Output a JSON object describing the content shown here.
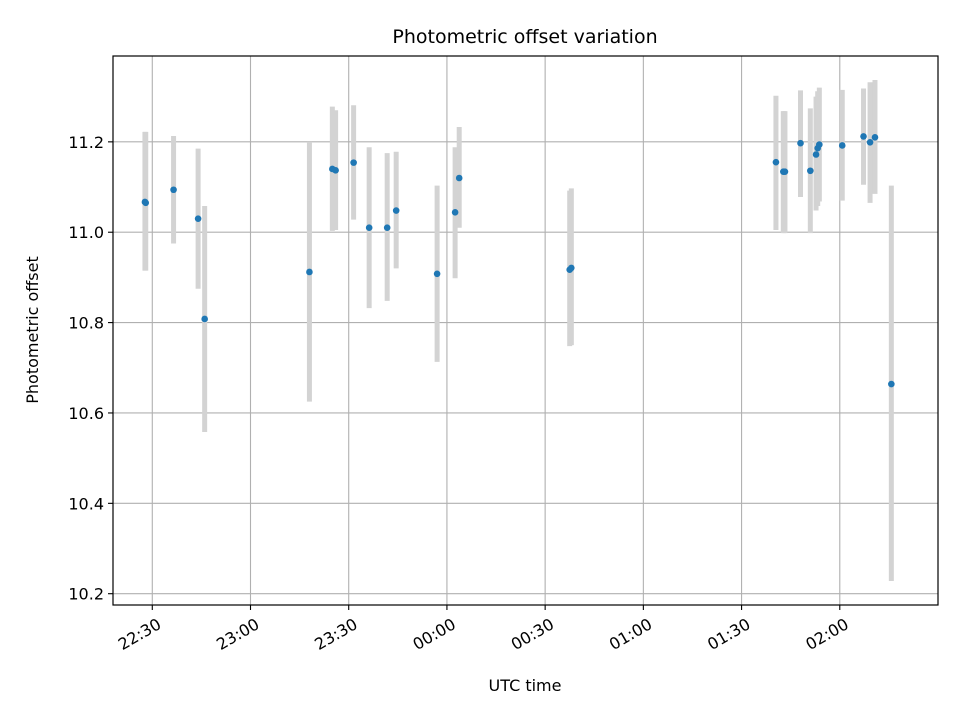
{
  "chart_data": {
    "type": "scatter",
    "title": "Photometric offset variation",
    "xlabel": "UTC time",
    "ylabel": "Photometric offset",
    "grid": true,
    "x_axis": {
      "kind": "time",
      "range": [
        "22:18:00",
        "02:30:00"
      ],
      "ticks": [
        "22:30",
        "23:00",
        "23:30",
        "00:00",
        "00:30",
        "01:00",
        "01:30",
        "02:00"
      ]
    },
    "y_axis": {
      "range": [
        10.175,
        11.39
      ],
      "ticks": [
        "10.2",
        "10.4",
        "10.6",
        "10.8",
        "11.0",
        "11.2"
      ]
    },
    "colors": {
      "points": "#1f77b4",
      "errorbars": "#d3d3d3",
      "grid": "#b0b0b0"
    },
    "series": [
      {
        "points": [
          {
            "t": "22:27:45",
            "y": 11.067,
            "ylow": 10.915,
            "yhigh": 11.222
          },
          {
            "t": "22:28:00",
            "y": 11.065,
            "ylow": 10.915,
            "yhigh": 11.222
          },
          {
            "t": "22:36:30",
            "y": 11.094,
            "ylow": 10.975,
            "yhigh": 11.213
          },
          {
            "t": "22:44:00",
            "y": 11.03,
            "ylow": 10.875,
            "yhigh": 11.185
          },
          {
            "t": "22:46:00",
            "y": 10.808,
            "ylow": 10.558,
            "yhigh": 11.058
          },
          {
            "t": "23:18:00",
            "y": 10.912,
            "ylow": 10.625,
            "yhigh": 11.2
          },
          {
            "t": "23:25:00",
            "y": 11.14,
            "ylow": 11.003,
            "yhigh": 11.278
          },
          {
            "t": "23:26:00",
            "y": 11.137,
            "ylow": 11.005,
            "yhigh": 11.27
          },
          {
            "t": "23:31:30",
            "y": 11.154,
            "ylow": 11.028,
            "yhigh": 11.281
          },
          {
            "t": "23:36:15",
            "y": 11.01,
            "ylow": 10.832,
            "yhigh": 11.188
          },
          {
            "t": "23:41:45",
            "y": 11.01,
            "ylow": 10.848,
            "yhigh": 11.175
          },
          {
            "t": "23:44:30",
            "y": 11.048,
            "ylow": 10.92,
            "yhigh": 11.178
          },
          {
            "t": "23:57:00",
            "y": 10.908,
            "ylow": 10.713,
            "yhigh": 11.103
          },
          {
            "t": "00:02:30",
            "y": 11.044,
            "ylow": 10.898,
            "yhigh": 11.188
          },
          {
            "t": "00:03:45",
            "y": 11.12,
            "ylow": 11.01,
            "yhigh": 11.233
          },
          {
            "t": "00:37:30",
            "y": 10.917,
            "ylow": 10.748,
            "yhigh": 11.092
          },
          {
            "t": "00:38:00",
            "y": 10.921,
            "ylow": 10.75,
            "yhigh": 11.097
          },
          {
            "t": "01:40:30",
            "y": 11.155,
            "ylow": 11.005,
            "yhigh": 11.302
          },
          {
            "t": "01:42:45",
            "y": 11.134,
            "ylow": 10.998,
            "yhigh": 11.268
          },
          {
            "t": "01:43:15",
            "y": 11.134,
            "ylow": 10.998,
            "yhigh": 11.268
          },
          {
            "t": "01:48:00",
            "y": 11.197,
            "ylow": 11.078,
            "yhigh": 11.314
          },
          {
            "t": "01:51:00",
            "y": 11.136,
            "ylow": 10.998,
            "yhigh": 11.274
          },
          {
            "t": "01:52:45",
            "y": 11.172,
            "ylow": 11.048,
            "yhigh": 11.3
          },
          {
            "t": "01:53:15",
            "y": 11.186,
            "ylow": 11.058,
            "yhigh": 11.312
          },
          {
            "t": "01:53:45",
            "y": 11.194,
            "ylow": 11.068,
            "yhigh": 11.32
          },
          {
            "t": "02:00:45",
            "y": 11.192,
            "ylow": 11.07,
            "yhigh": 11.315
          },
          {
            "t": "02:07:15",
            "y": 11.212,
            "ylow": 11.105,
            "yhigh": 11.318
          },
          {
            "t": "02:09:15",
            "y": 11.199,
            "ylow": 11.065,
            "yhigh": 11.332
          },
          {
            "t": "02:10:45",
            "y": 11.21,
            "ylow": 11.085,
            "yhigh": 11.337
          },
          {
            "t": "02:15:45",
            "y": 10.664,
            "ylow": 10.228,
            "yhigh": 11.103
          }
        ]
      }
    ]
  }
}
